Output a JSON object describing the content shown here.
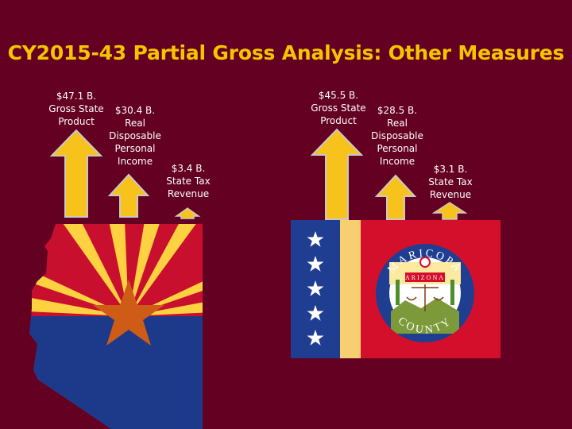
{
  "title": "CY2015-43 Partial Gross Analysis: Other Measures",
  "left": {
    "gsp": "$47.1 B.\nGross State\nProduct",
    "income": "$30.4 B.\nReal\nDisposable\nPersonal\nIncome",
    "tax": "$3.4 B.\nState Tax\nRevenue"
  },
  "right": {
    "gsp": "$45.5 B.\nGross State\nProduct",
    "income": "$28.5 B.\nReal\nDisposable\nPersonal\nIncome",
    "tax": "$3.1 B.\nState Tax\nRevenue"
  },
  "seal": {
    "top_text": "MARICOPA",
    "bottom_text": "COUNTY",
    "banner": "ARIZONA"
  },
  "colors": {
    "background": "#640021",
    "title": "#f5c400",
    "arrow": "#f8c21c",
    "arrow_outline": "#c8c8c8",
    "state_red": "#c8102e",
    "state_yellow": "#fed141",
    "state_blue": "#1d3a8a",
    "state_star": "#ce5c17"
  }
}
